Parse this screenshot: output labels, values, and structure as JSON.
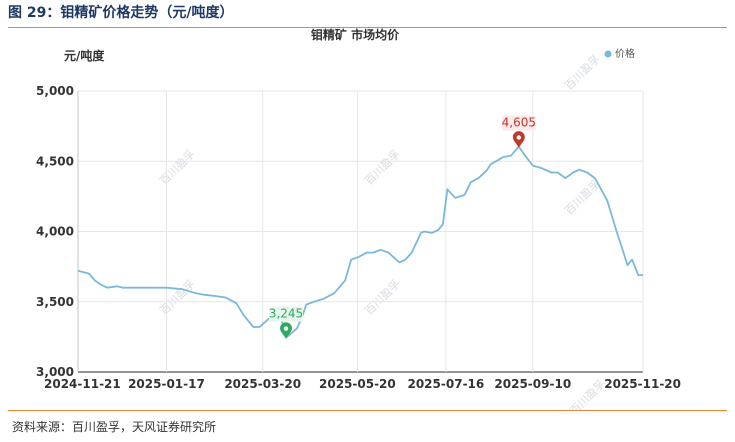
{
  "figure_title": "图 29：钼精矿价格走势（元/吨度）",
  "source": "资料来源：百川盈孚，天风证券研究所",
  "watermark": "百川盈孚",
  "colors": {
    "line": "#7ab8d9",
    "max": "#c0392b",
    "min": "#2eaa5e",
    "rule": "#e8833a",
    "title": "#1f3864"
  },
  "chart_data": {
    "type": "line",
    "title": "钼精矿 市场均价",
    "ylabel": "元/吨度",
    "ylim": [
      3000,
      5000
    ],
    "yticks": [
      "3,000",
      "3,500",
      "4,000",
      "4,500",
      "5,000"
    ],
    "ytick_values": [
      3000,
      3500,
      4000,
      4500,
      5000
    ],
    "xlim": [
      "2024-11-21",
      "2025-11-20"
    ],
    "xticks": [
      "2024-11-21",
      "2025-01-17",
      "2025-03-20",
      "2025-05-20",
      "2025-07-16",
      "2025-09-10",
      "2025-11-20"
    ],
    "grid": true,
    "legend": {
      "position": "top-right",
      "entries": [
        "价格"
      ]
    },
    "annotations": {
      "max": {
        "date": "2025-09-01",
        "value": 4605,
        "label": "4,605"
      },
      "min": {
        "date": "2025-04-04",
        "value": 3245,
        "label": "3,245"
      }
    },
    "series": [
      {
        "name": "价格",
        "x": [
          "2024-11-21",
          "2024-11-28",
          "2024-12-02",
          "2024-12-06",
          "2024-12-10",
          "2024-12-16",
          "2024-12-20",
          "2024-12-26",
          "2025-01-02",
          "2025-01-10",
          "2025-01-17",
          "2025-01-27",
          "2025-02-05",
          "2025-02-10",
          "2025-02-18",
          "2025-02-24",
          "2025-03-03",
          "2025-03-08",
          "2025-03-14",
          "2025-03-18",
          "2025-03-24",
          "2025-03-28",
          "2025-04-01",
          "2025-04-04",
          "2025-04-08",
          "2025-04-11",
          "2025-04-14",
          "2025-04-17",
          "2025-04-22",
          "2025-04-28",
          "2025-05-05",
          "2025-05-12",
          "2025-05-16",
          "2025-05-21",
          "2025-05-26",
          "2025-05-30",
          "2025-06-04",
          "2025-06-09",
          "2025-06-16",
          "2025-06-20",
          "2025-06-24",
          "2025-06-30",
          "2025-07-02",
          "2025-07-07",
          "2025-07-11",
          "2025-07-14",
          "2025-07-17",
          "2025-07-22",
          "2025-07-28",
          "2025-08-01",
          "2025-08-06",
          "2025-08-11",
          "2025-08-14",
          "2025-08-19",
          "2025-08-22",
          "2025-08-27",
          "2025-09-01",
          "2025-09-05",
          "2025-09-10",
          "2025-09-16",
          "2025-09-22",
          "2025-09-26",
          "2025-10-01",
          "2025-10-06",
          "2025-10-10",
          "2025-10-15",
          "2025-10-20",
          "2025-10-24",
          "2025-10-28",
          "2025-11-03",
          "2025-11-06",
          "2025-11-10",
          "2025-11-13",
          "2025-11-17",
          "2025-11-20"
        ],
        "values": [
          3720,
          3700,
          3650,
          3620,
          3600,
          3610,
          3600,
          3600,
          3600,
          3600,
          3600,
          3590,
          3560,
          3550,
          3540,
          3530,
          3490,
          3400,
          3320,
          3320,
          3380,
          3400,
          3380,
          3245,
          3280,
          3310,
          3380,
          3480,
          3500,
          3520,
          3560,
          3650,
          3800,
          3820,
          3850,
          3850,
          3870,
          3850,
          3780,
          3800,
          3850,
          3990,
          4000,
          3990,
          4010,
          4050,
          4300,
          4240,
          4260,
          4350,
          4380,
          4430,
          4480,
          4510,
          4530,
          4540,
          4605,
          4540,
          4470,
          4450,
          4420,
          4420,
          4380,
          4420,
          4440,
          4420,
          4380,
          4300,
          4220,
          4000,
          3900,
          3760,
          3800,
          3690,
          3690
        ]
      }
    ]
  }
}
